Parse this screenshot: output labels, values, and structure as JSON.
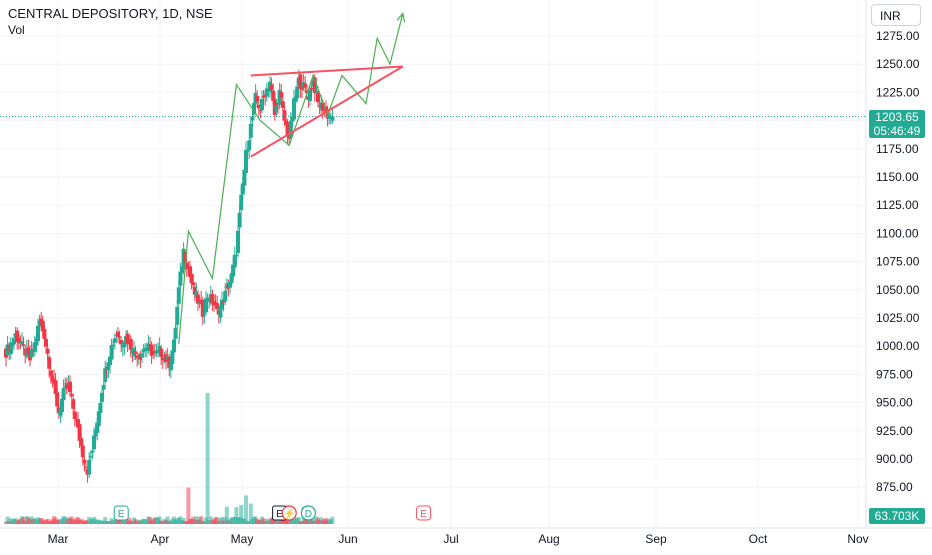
{
  "header": {
    "title": "CENTRAL DEPOSITORY, 1D, NSE",
    "volume_label": "Vol"
  },
  "currency": "INR",
  "last_price": {
    "price": "1203.65",
    "countdown": "05:46:49"
  },
  "volume_last": "63.703K",
  "colors": {
    "up": "#22ab94",
    "down": "#f23645",
    "projection": "#4caf50",
    "trendline": "#f7525f",
    "grid": "#f0f3fa"
  },
  "chart_data": {
    "type": "candlestick",
    "x_axis": {
      "tick_labels": [
        "Mar",
        "Apr",
        "May",
        "Jun",
        "Jul",
        "Aug",
        "Sep",
        "Oct",
        "Nov"
      ]
    },
    "y_axis": {
      "ticks": [
        875,
        900,
        925,
        950,
        975,
        1000,
        1025,
        1050,
        1075,
        1100,
        1125,
        1150,
        1175,
        1200,
        1225,
        1250,
        1275
      ],
      "range": [
        860,
        1290
      ]
    },
    "grid": true,
    "last_price_line": 1203.65,
    "price_path": [
      [
        0,
        995
      ],
      [
        3,
        1002
      ],
      [
        6,
        1010
      ],
      [
        9,
        1002
      ],
      [
        12,
        995
      ],
      [
        15,
        988
      ],
      [
        18,
        1002
      ],
      [
        21,
        1022
      ],
      [
        24,
        1010
      ],
      [
        27,
        985
      ],
      [
        30,
        962
      ],
      [
        33,
        942
      ],
      [
        36,
        958
      ],
      [
        39,
        965
      ],
      [
        42,
        945
      ],
      [
        45,
        925
      ],
      [
        48,
        905
      ],
      [
        51,
        890
      ],
      [
        54,
        908
      ],
      [
        57,
        935
      ],
      [
        60,
        962
      ],
      [
        63,
        985
      ],
      [
        66,
        1000
      ],
      [
        69,
        1012
      ],
      [
        72,
        1005
      ],
      [
        75,
        1008
      ],
      [
        78,
        1000
      ],
      [
        81,
        994
      ],
      [
        84,
        992
      ],
      [
        87,
        1000
      ],
      [
        90,
        997
      ],
      [
        93,
        991
      ],
      [
        96,
        996
      ],
      [
        99,
        990
      ],
      [
        102,
        985
      ],
      [
        105,
        1002
      ],
      [
        108,
        1050
      ],
      [
        111,
        1085
      ],
      [
        114,
        1068
      ],
      [
        117,
        1050
      ],
      [
        120,
        1040
      ],
      [
        123,
        1030
      ],
      [
        126,
        1045
      ],
      [
        129,
        1040
      ],
      [
        132,
        1030
      ],
      [
        135,
        1038
      ],
      [
        138,
        1050
      ],
      [
        141,
        1062
      ],
      [
        144,
        1085
      ],
      [
        147,
        1130
      ],
      [
        150,
        1170
      ],
      [
        153,
        1195
      ],
      [
        156,
        1220
      ],
      [
        159,
        1210
      ],
      [
        162,
        1225
      ],
      [
        165,
        1235
      ],
      [
        168,
        1205
      ],
      [
        171,
        1225
      ],
      [
        174,
        1200
      ],
      [
        177,
        1185
      ],
      [
        180,
        1215
      ],
      [
        183,
        1235
      ],
      [
        186,
        1230
      ],
      [
        189,
        1222
      ],
      [
        192,
        1235
      ],
      [
        195,
        1215
      ],
      [
        198,
        1212
      ],
      [
        201,
        1205
      ],
      [
        204,
        1203.65
      ]
    ],
    "volume": {
      "spikes": [
        [
          114,
          125000
        ],
        [
          126,
          450000
        ],
        [
          138,
          60000
        ],
        [
          144,
          58000
        ],
        [
          147,
          65000
        ],
        [
          150,
          98000
        ],
        [
          153,
          70000
        ],
        [
          168,
          52000
        ],
        [
          186,
          60000
        ]
      ],
      "base": 18000
    },
    "annotations": {
      "projection_path": [
        [
          108,
          1002
        ],
        [
          114,
          1102
        ],
        [
          129,
          1060
        ],
        [
          144,
          1232
        ],
        [
          159,
          1200
        ],
        [
          177,
          1178
        ],
        [
          192,
          1240
        ],
        [
          201,
          1205
        ],
        [
          210,
          1240
        ],
        [
          225,
          1215
        ],
        [
          232,
          1273
        ],
        [
          240,
          1250
        ],
        [
          248,
          1295
        ]
      ],
      "triangle_upper": [
        [
          153,
          1240
        ],
        [
          248,
          1248
        ]
      ],
      "triangle_lower": [
        [
          153,
          1168
        ],
        [
          248,
          1248
        ]
      ],
      "event_markers": [
        {
          "day": 72,
          "letter": "E"
        },
        {
          "day": 171,
          "letter": "E"
        },
        {
          "day": 177,
          "letter": "⚡"
        },
        {
          "day": 189,
          "letter": "D"
        },
        {
          "day": 261,
          "letter": "E"
        }
      ]
    }
  }
}
